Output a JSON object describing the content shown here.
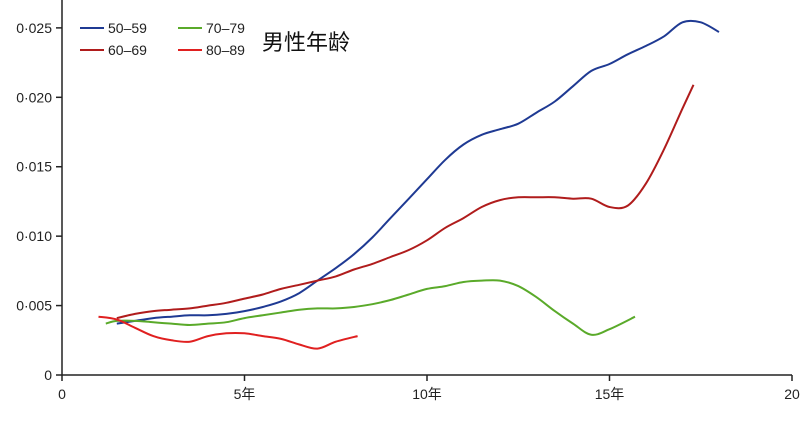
{
  "chart_data": {
    "type": "line",
    "title": "男性年龄",
    "xlabel": "",
    "ylabel": "",
    "xlim": [
      0,
      20
    ],
    "ylim": [
      0,
      0.026
    ],
    "x_ticks": [
      {
        "value": 0,
        "label": "0"
      },
      {
        "value": 5,
        "label": "5年"
      },
      {
        "value": 10,
        "label": "10年"
      },
      {
        "value": 15,
        "label": "15年"
      },
      {
        "value": 20,
        "label": "20"
      }
    ],
    "y_ticks": [
      {
        "value": 0,
        "label": "0"
      },
      {
        "value": 0.005,
        "label": "0·005"
      },
      {
        "value": 0.01,
        "label": "0·010"
      },
      {
        "value": 0.015,
        "label": "0·015"
      },
      {
        "value": 0.02,
        "label": "0·020"
      },
      {
        "value": 0.025,
        "label": "0·025"
      }
    ],
    "grid": false,
    "legend_position": "top-left",
    "series": [
      {
        "name": "50–59",
        "color": "#1f3a93",
        "x": [
          1.5,
          2,
          2.5,
          3,
          3.5,
          4,
          4.5,
          5,
          5.5,
          6,
          6.5,
          7,
          7.5,
          8,
          8.5,
          9,
          9.5,
          10,
          10.5,
          11,
          11.5,
          12,
          12.5,
          13,
          13.5,
          14,
          14.5,
          15,
          15.5,
          16,
          16.5,
          17,
          17.5,
          18
        ],
        "y": [
          0.0037,
          0.0039,
          0.0041,
          0.0042,
          0.0043,
          0.0043,
          0.0044,
          0.0046,
          0.0049,
          0.0053,
          0.0059,
          0.0068,
          0.0077,
          0.0087,
          0.0099,
          0.0113,
          0.0127,
          0.0141,
          0.0155,
          0.0166,
          0.0173,
          0.0177,
          0.0181,
          0.0189,
          0.0197,
          0.0208,
          0.0219,
          0.0224,
          0.0231,
          0.0237,
          0.0244,
          0.0254,
          0.0254,
          0.0247
        ]
      },
      {
        "name": "60–69",
        "color": "#b01c1c",
        "x": [
          1.5,
          2,
          2.5,
          3,
          3.5,
          4,
          4.5,
          5,
          5.5,
          6,
          6.5,
          7,
          7.5,
          8,
          8.5,
          9,
          9.5,
          10,
          10.5,
          11,
          11.5,
          12,
          12.5,
          13,
          13.5,
          14,
          14.5,
          15,
          15.5,
          16,
          16.5,
          17,
          17.3
        ],
        "y": [
          0.0041,
          0.0044,
          0.0046,
          0.0047,
          0.0048,
          0.005,
          0.0052,
          0.0055,
          0.0058,
          0.0062,
          0.0065,
          0.0068,
          0.0071,
          0.0076,
          0.008,
          0.0085,
          0.009,
          0.0097,
          0.0106,
          0.0113,
          0.0121,
          0.0126,
          0.0128,
          0.0128,
          0.0128,
          0.0127,
          0.0127,
          0.0121,
          0.0122,
          0.0138,
          0.0163,
          0.0192,
          0.0209
        ]
      },
      {
        "name": "70–79",
        "color": "#5aaa2a",
        "x": [
          1.2,
          1.5,
          2,
          2.5,
          3,
          3.5,
          4,
          4.5,
          5,
          5.5,
          6,
          6.5,
          7,
          7.5,
          8,
          8.5,
          9,
          9.5,
          10,
          10.5,
          11,
          11.5,
          12,
          12.5,
          13,
          13.5,
          14,
          14.5,
          15,
          15.7
        ],
        "y": [
          0.0037,
          0.0039,
          0.0039,
          0.0038,
          0.0037,
          0.0036,
          0.0037,
          0.0038,
          0.0041,
          0.0043,
          0.0045,
          0.0047,
          0.0048,
          0.0048,
          0.0049,
          0.0051,
          0.0054,
          0.0058,
          0.0062,
          0.0064,
          0.0067,
          0.0068,
          0.0068,
          0.0064,
          0.0056,
          0.0046,
          0.0037,
          0.0029,
          0.0033,
          0.0042
        ]
      },
      {
        "name": "80–89",
        "color": "#e02020",
        "x": [
          1,
          1.5,
          2,
          2.5,
          3,
          3.5,
          4,
          4.5,
          5,
          5.5,
          6,
          6.5,
          7,
          7.5,
          8.1
        ],
        "y": [
          0.0042,
          0.004,
          0.0034,
          0.0028,
          0.0025,
          0.0024,
          0.0028,
          0.003,
          0.003,
          0.0028,
          0.0026,
          0.0022,
          0.0019,
          0.0024,
          0.0028
        ]
      }
    ]
  }
}
